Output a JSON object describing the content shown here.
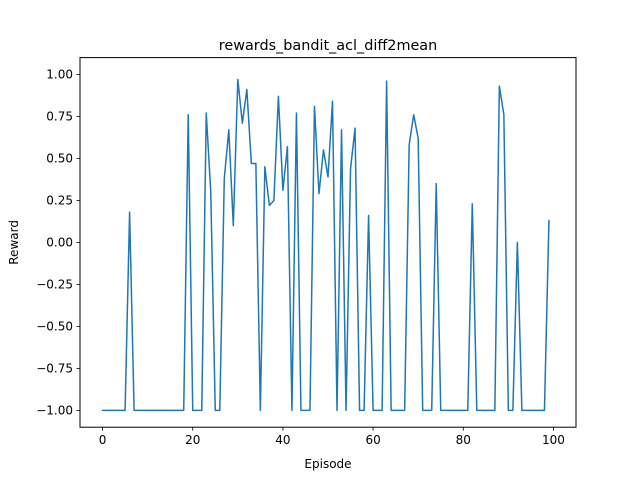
{
  "chart_data": {
    "type": "line",
    "title": "rewards_bandit_acl_diff2mean",
    "xlabel": "Episode",
    "ylabel": "Reward",
    "xlim": [
      -5,
      105
    ],
    "ylim": [
      -1.1,
      1.1
    ],
    "xticks": [
      0,
      20,
      40,
      60,
      80,
      100
    ],
    "xtick_labels": [
      "0",
      "20",
      "40",
      "60",
      "80",
      "100"
    ],
    "yticks": [
      -1.0,
      -0.75,
      -0.5,
      -0.25,
      0.0,
      0.25,
      0.5,
      0.75,
      1.0
    ],
    "ytick_labels": [
      "−1.00",
      "−0.75",
      "−0.50",
      "−0.25",
      "0.00",
      "0.25",
      "0.50",
      "0.75",
      "1.00"
    ],
    "grid": false,
    "series_color": "#1f77b4",
    "series": [
      {
        "x": [
          0,
          1,
          2,
          3,
          4,
          5,
          6,
          7,
          8,
          9,
          10,
          11,
          12,
          13,
          14,
          15,
          16,
          17,
          18,
          19,
          20,
          21,
          22,
          23,
          24,
          25,
          26,
          27,
          28,
          29,
          30,
          31,
          32,
          33,
          34,
          35,
          36,
          37,
          38,
          39,
          40,
          41,
          42,
          43,
          44,
          45,
          46,
          47,
          48,
          49,
          50,
          51,
          52,
          53,
          54,
          55,
          56,
          57,
          58,
          59,
          60,
          61,
          62,
          63,
          64,
          65,
          66,
          67,
          68,
          69,
          70,
          71,
          72,
          73,
          74,
          75,
          76,
          77,
          78,
          79,
          80,
          81,
          82,
          83,
          84,
          85,
          86,
          87,
          88,
          89,
          90,
          91,
          92,
          93,
          94,
          95,
          96,
          97,
          98,
          99
        ],
        "values": [
          -1,
          -1,
          -1,
          -1,
          -1,
          -1,
          0.18,
          -1,
          -1,
          -1,
          -1,
          -1,
          -1,
          -1,
          -1,
          -1,
          -1,
          -1,
          -1,
          0.76,
          -1,
          -1,
          -1,
          0.77,
          0.3,
          -1,
          -1,
          0.38,
          0.67,
          0.1,
          0.97,
          0.71,
          0.91,
          0.47,
          0.47,
          -1,
          0.45,
          0.22,
          0.25,
          0.87,
          0.31,
          0.57,
          -1,
          0.77,
          -1,
          -1,
          -1,
          0.81,
          0.29,
          0.55,
          0.39,
          0.84,
          -1,
          0.67,
          -1,
          0.44,
          0.68,
          -1,
          -1,
          0.16,
          -1,
          -1,
          -1,
          0.96,
          -1,
          -1,
          -1,
          -1,
          0.58,
          0.76,
          0.62,
          -1,
          -1,
          -1,
          0.35,
          -1,
          -1,
          -1,
          -1,
          -1,
          -1,
          -1,
          0.23,
          -1,
          -1,
          -1,
          -1,
          -1,
          0.93,
          0.76,
          -1,
          -1,
          0.0,
          -1,
          -1,
          -1,
          -1,
          -1,
          -1,
          0.13
        ]
      }
    ]
  }
}
